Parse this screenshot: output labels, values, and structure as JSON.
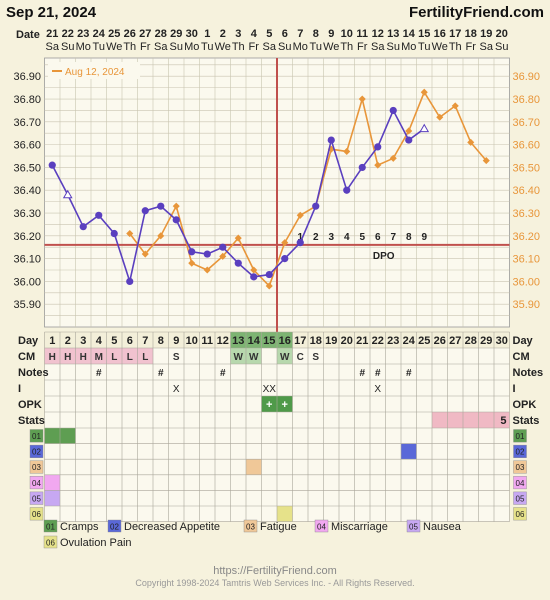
{
  "header": {
    "date": "Sep 21, 2024",
    "site": "FertilityFriend.com"
  },
  "chart_data": {
    "type": "line",
    "title": "",
    "ylim": [
      35.8,
      36.98
    ],
    "yticks": [
      35.9,
      36.0,
      36.1,
      36.2,
      36.3,
      36.4,
      36.5,
      36.6,
      36.7,
      36.8,
      36.9
    ],
    "date_row_label": "Date",
    "dates": [
      "21",
      "22",
      "23",
      "24",
      "25",
      "26",
      "27",
      "28",
      "29",
      "30",
      "1",
      "2",
      "3",
      "4",
      "5",
      "6",
      "7",
      "8",
      "9",
      "10",
      "11",
      "12",
      "13",
      "14",
      "15",
      "16",
      "17",
      "18",
      "19",
      "20"
    ],
    "weekdays": [
      "Sa",
      "Su",
      "Mo",
      "Tu",
      "We",
      "Th",
      "Fr",
      "Sa",
      "Su",
      "Mo",
      "Tu",
      "We",
      "Th",
      "Fr",
      "Sa",
      "Su",
      "Mo",
      "Tu",
      "We",
      "Th",
      "Fr",
      "Sa",
      "Su",
      "Mo",
      "Tu",
      "We",
      "Th",
      "Fr",
      "Sa",
      "Su"
    ],
    "series": [
      {
        "name": "",
        "color": "#5a3fbf",
        "values": [
          36.51,
          36.38,
          36.24,
          36.29,
          36.21,
          36.0,
          36.31,
          36.33,
          36.27,
          36.13,
          36.12,
          36.15,
          36.08,
          36.02,
          36.03,
          36.1,
          36.17,
          36.33,
          36.62,
          36.4,
          36.5,
          36.59,
          36.75,
          36.62,
          36.67,
          null,
          null,
          null,
          null,
          null
        ]
      },
      {
        "name": "Aug 12, 2024",
        "color": "#e8963a",
        "values": [
          null,
          null,
          null,
          null,
          null,
          36.21,
          36.12,
          36.2,
          36.33,
          36.08,
          36.05,
          36.11,
          36.19,
          36.05,
          35.98,
          36.17,
          36.29,
          36.33,
          36.58,
          36.57,
          36.8,
          36.51,
          36.54,
          36.66,
          36.83,
          36.72,
          36.77,
          36.61,
          36.53,
          null
        ]
      }
    ],
    "open_markers": [
      {
        "day": 2,
        "series": 0
      },
      {
        "day": 25,
        "series": 0
      }
    ],
    "coverline": 36.16,
    "coverline_label": "DPO",
    "ovulation_day": 16,
    "dpo_labels": [
      "1",
      "2",
      "3",
      "4",
      "5",
      "6",
      "7",
      "8",
      "9"
    ],
    "day_row_label": "Day",
    "days": [
      "1",
      "2",
      "3",
      "4",
      "5",
      "6",
      "7",
      "8",
      "9",
      "10",
      "11",
      "12",
      "13",
      "14",
      "15",
      "16",
      "17",
      "18",
      "19",
      "20",
      "21",
      "22",
      "23",
      "24",
      "25",
      "26",
      "27",
      "28",
      "29",
      "30"
    ],
    "cm_label": "CM",
    "cm": [
      "H",
      "H",
      "H",
      "M",
      "L",
      "L",
      "L",
      "",
      "S",
      "",
      "",
      "",
      "W",
      "W",
      "",
      "W",
      "C",
      "S",
      "",
      "",
      "",
      "",
      "",
      "",
      "",
      "",
      "",
      "",
      "",
      ""
    ],
    "notes_label": "Notes",
    "notes": [
      "",
      "",
      "",
      "#",
      "",
      "",
      "",
      "#",
      "",
      "",
      "",
      "#",
      "",
      "",
      "",
      "",
      "",
      "",
      "",
      "",
      "#",
      "#",
      "",
      "#",
      "",
      "",
      "",
      "",
      "",
      ""
    ],
    "i_label": "I",
    "intercourse": [
      "",
      "",
      "",
      "",
      "",
      "",
      "",
      "",
      "X",
      "",
      "",
      "",
      "",
      "",
      "XX",
      "",
      "",
      "",
      "",
      "",
      "",
      "X",
      "",
      "",
      "",
      "",
      "",
      "",
      "",
      ""
    ],
    "opk_label": "OPK",
    "opk": [
      "",
      "",
      "",
      "",
      "",
      "",
      "",
      "",
      "",
      "",
      "",
      "",
      "",
      "",
      "+",
      "+",
      "",
      "",
      "",
      "",
      "",
      "",
      "",
      "",
      "",
      "",
      "",
      "",
      "",
      ""
    ],
    "stats_label": "Stats",
    "stats_value": "5",
    "stats_highlight": [
      26,
      30
    ],
    "symptom_rows": [
      {
        "code": "01",
        "name": "Cramps",
        "color": "#5e9e52",
        "days": [
          1,
          2
        ]
      },
      {
        "code": "02",
        "name": "Decreased Appetite",
        "color": "#5a68d8",
        "days": [
          24
        ]
      },
      {
        "code": "03",
        "name": "Fatigue",
        "color": "#f0c898",
        "days": [
          14
        ]
      },
      {
        "code": "04",
        "name": "Miscarriage",
        "color": "#f1a8f0",
        "days": [
          1
        ]
      },
      {
        "code": "05",
        "name": "Nausea",
        "color": "#c7a8f2",
        "days": [
          1
        ]
      },
      {
        "code": "06",
        "name": "Ovulation Pain",
        "color": "#e6e28a",
        "days": [
          16
        ]
      }
    ]
  },
  "footer": {
    "url": "https://FertilityFriend.com",
    "copyright": "Copyright 1998-2024 Tamtris Web Services Inc. - All Rights Reserved."
  }
}
